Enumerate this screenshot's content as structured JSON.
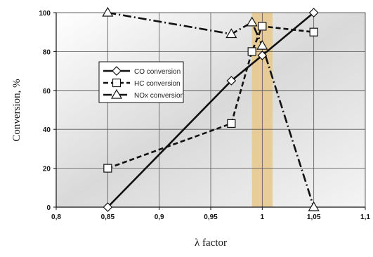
{
  "chart_data": {
    "type": "line",
    "title": "",
    "xlabel": "λ factor",
    "ylabel": "Conversion, %",
    "xlim": [
      0.8,
      1.1
    ],
    "ylim": [
      0,
      100
    ],
    "x_ticks": [
      "0,8",
      "0,85",
      "0,9",
      "0,95",
      "1",
      "1,05",
      "1,1"
    ],
    "y_ticks": [
      "0",
      "20",
      "40",
      "60",
      "80",
      "100"
    ],
    "grid": true,
    "legend_position": "center-left",
    "highlight_band": {
      "x_from": 0.99,
      "x_to": 1.01,
      "color": "#e8c88a"
    },
    "series": [
      {
        "name": "CO conversion",
        "style": "solid",
        "marker": "diamond",
        "x": [
          0.85,
          0.97,
          1.0,
          1.05
        ],
        "y": [
          0,
          65,
          78,
          100
        ]
      },
      {
        "name": "HC conversion",
        "style": "dashed",
        "marker": "square",
        "x": [
          0.85,
          0.97,
          0.99,
          1.0,
          1.05
        ],
        "y": [
          20,
          43,
          80,
          93,
          90
        ]
      },
      {
        "name": "NOx conversion",
        "style": "dashdot",
        "marker": "triangle",
        "x": [
          0.85,
          0.97,
          0.99,
          1.0,
          1.05
        ],
        "y": [
          100,
          89,
          95,
          83,
          0
        ]
      }
    ]
  }
}
